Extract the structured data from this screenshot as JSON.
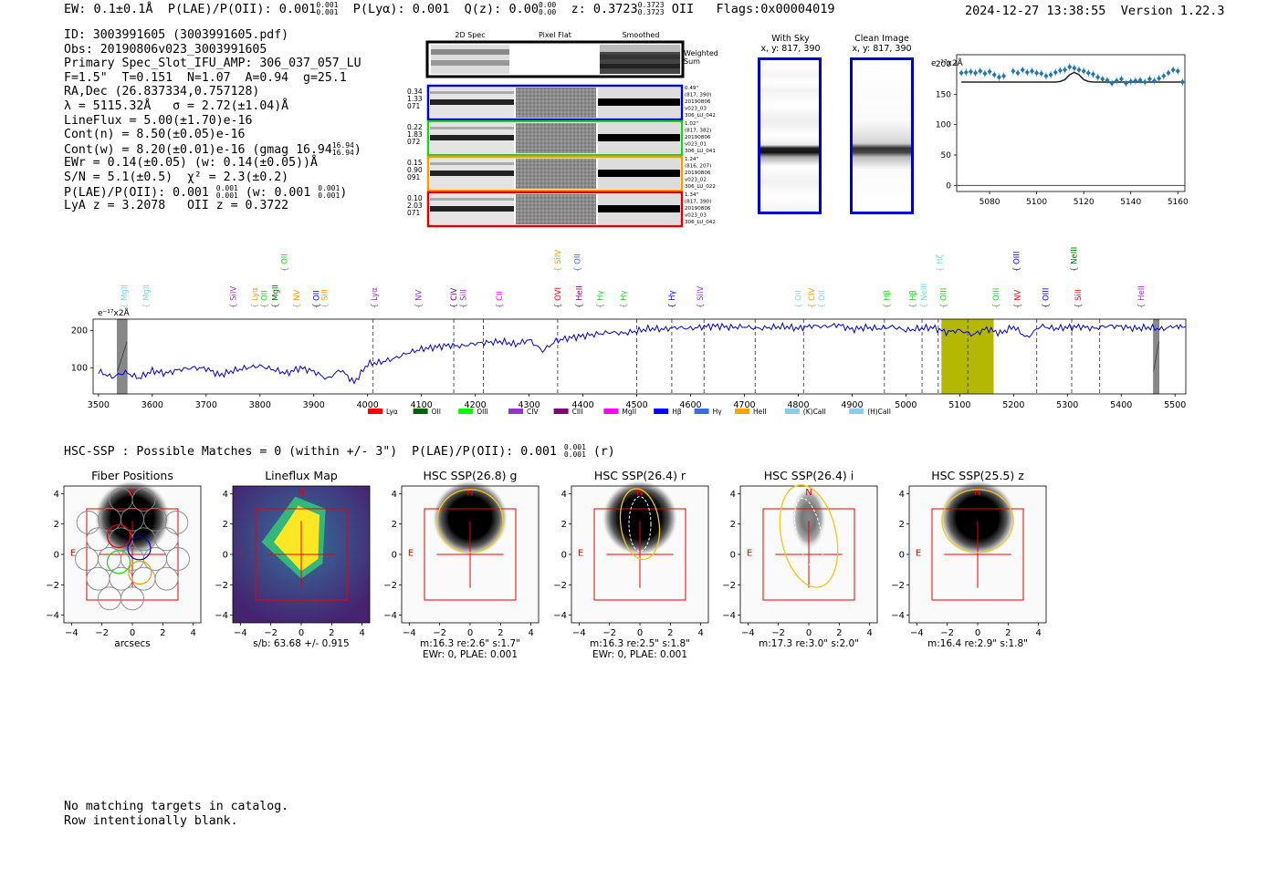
{
  "header": {
    "ew": "EW: 0.1±0.1Å",
    "plae": "P(LAE)/P(OII): 0.001",
    "plae_sup": "0.001",
    "plae_sub": "0.001",
    "plya": "P(Lyα): 0.001",
    "qz": "Q(z): 0.00",
    "qz_sup": "0.00",
    "qz_sub": "0.00",
    "z": "z: 0.3723",
    "z_sup": "0.3723",
    "z_sub": "0.3723",
    "z_line": "OII",
    "flags": "Flags:0x00004019",
    "datetime": "2024-12-27 13:38:55",
    "version": "Version 1.22.3"
  },
  "info": {
    "id": "ID: 3003991605 (3003991605.pdf)",
    "obs": "Obs: 20190806v023_3003991605",
    "primary": "Primary Spec_Slot_IFU_AMP: 306_037_057_LU",
    "params": "F=1.5\"  T=0.151  N=1.07  A=0.94  g=25.1",
    "radec": "RA,Dec (26.837334,0.757128)",
    "lambda": "λ = 5115.32Å   σ = 2.72(±1.04)Å",
    "lineflux": "LineFlux = 5.00(±1.70)e-16",
    "contn": "Cont(n) = 8.50(±0.05)e-16",
    "contw": "Cont(w) = 8.20(±0.01)e-16 (gmag 16.94",
    "contw_sup": "16.94",
    "contw_sub": "16.94",
    "contw_end": ")",
    "ewr": "EWr = 0.14(±0.05) (w: 0.14(±0.05))Å",
    "sn": "S/N = 5.1(±0.5)  χ² = 2.3(±0.2)",
    "plae2": "P(LAE)/P(OII): 0.001",
    "plae2_sup": "0.001",
    "plae2_sub": "0.001",
    "plae2_w": "(w: 0.001",
    "plae2_w_sup": "0.001",
    "plae2_w_sub": "0.001",
    "plae2_end": ")",
    "lya_z": "LyA z = 3.2078   OII z = 0.3722"
  },
  "cutouts": {
    "col_headers": [
      "2D Spec",
      "Pixel Flat",
      "Smoothed"
    ],
    "weighted_label": "Weighted",
    "weighted_label2": "Sum",
    "rows": [
      {
        "color": "#0000cc",
        "left": [
          "0.34",
          "1.33",
          "071"
        ],
        "right": [
          "0.49\"",
          "(817, 390)",
          "20190806",
          "v023_03",
          "306_LU_042"
        ]
      },
      {
        "color": "#22cc22",
        "left": [
          "0.22",
          "1.83",
          "072"
        ],
        "right": [
          "1.02\"",
          "(817, 382)",
          "20190806",
          "v023_01",
          "306_LU_041"
        ]
      },
      {
        "color": "#ff9900",
        "left": [
          "0.15",
          "0.90",
          "091"
        ],
        "right": [
          "1.24\"",
          "(816, 207)",
          "20190806",
          "v023_02",
          "306_LU_022"
        ]
      },
      {
        "color": "#dd0000",
        "left": [
          "0.10",
          "2.03",
          "071"
        ],
        "right": [
          "1.34\"",
          "(817, 390)",
          "20190806",
          "v023_03",
          "306_LU_042"
        ]
      }
    ]
  },
  "sky": {
    "with_sky": "With Sky",
    "with_sky_xy": "x, y: 817, 390",
    "clean": "Clean Image",
    "clean_xy": "x, y: 817, 390"
  },
  "small_plot": {
    "ylabel": "e⁻¹⁷x2Å",
    "yticks": [
      0,
      50,
      100,
      150,
      200
    ],
    "xticks": [
      5080,
      5100,
      5120,
      5140,
      5160
    ]
  },
  "full_spectrum": {
    "ylabel": "e⁻¹⁷x2Å",
    "xticks": [
      3500,
      3600,
      3700,
      3800,
      3900,
      4000,
      4100,
      4200,
      4300,
      4400,
      4500,
      4600,
      4700,
      4800,
      4900,
      5000,
      5100,
      5200,
      5300,
      5400,
      5500
    ],
    "yticks": [
      100,
      200
    ],
    "legend": [
      {
        "label": "Lyα",
        "color": "#ff0000"
      },
      {
        "label": "OII",
        "color": "#006400"
      },
      {
        "label": "OIII",
        "color": "#00ff00"
      },
      {
        "label": "CIV",
        "color": "#9932cc"
      },
      {
        "label": "CIII",
        "color": "#800080"
      },
      {
        "label": "MgII",
        "color": "#ff00ff"
      },
      {
        "label": "Hβ",
        "color": "#0000ff"
      },
      {
        "label": "Hγ",
        "color": "#4169e1"
      },
      {
        "label": "HeII",
        "color": "#ffa500"
      },
      {
        "label": "(K)CaII",
        "color": "#87ceeb"
      },
      {
        "label": "(H)CaII",
        "color": "#87ceeb"
      }
    ],
    "lines": [
      {
        "name": "MgII",
        "color": "#87ceeb",
        "wave": 3548,
        "row": 1
      },
      {
        "name": "MgII",
        "color": "#87ceeb",
        "wave": 3588,
        "row": 1
      },
      {
        "name": "SiIV",
        "color": "#9932cc",
        "wave": 3750,
        "row": 1
      },
      {
        "name": "Lyα",
        "color": "#ff9900",
        "wave": 3790,
        "row": 1
      },
      {
        "name": "OII",
        "color": "#22cc22",
        "wave": 3808,
        "row": 1
      },
      {
        "name": "MgII",
        "color": "#006400",
        "wave": 3828,
        "row": 1
      },
      {
        "name": "OII",
        "color": "#22cc22",
        "wave": 3845,
        "row": 0
      },
      {
        "name": "NV",
        "color": "#ff9900",
        "wave": 3868,
        "row": 1
      },
      {
        "name": "OII",
        "color": "#0000cc",
        "wave": 3905,
        "row": 1
      },
      {
        "name": "SiII",
        "color": "#ff9900",
        "wave": 3920,
        "row": 1
      },
      {
        "name": "Lyα",
        "color": "#9932cc",
        "wave": 4012,
        "row": 1
      },
      {
        "name": "NV",
        "color": "#9932cc",
        "wave": 4095,
        "row": 1
      },
      {
        "name": "CIV",
        "color": "#800080",
        "wave": 4160,
        "row": 1
      },
      {
        "name": "SiII",
        "color": "#9932cc",
        "wave": 4178,
        "row": 1
      },
      {
        "name": "CII",
        "color": "#ff00ff",
        "wave": 4245,
        "row": 1
      },
      {
        "name": "SiIV",
        "color": "#ff9900",
        "wave": 4353,
        "row": 0
      },
      {
        "name": "OVI",
        "color": "#ff0000",
        "wave": 4353,
        "row": 1
      },
      {
        "name": "OII",
        "color": "#4169e1",
        "wave": 4390,
        "row": 0
      },
      {
        "name": "HeII",
        "color": "#800080",
        "wave": 4393,
        "row": 1
      },
      {
        "name": "Hγ",
        "color": "#22cc22",
        "wave": 4432,
        "row": 1
      },
      {
        "name": "Hγ",
        "color": "#22cc22",
        "wave": 4475,
        "row": 1
      },
      {
        "name": "Hγ",
        "color": "#0000cc",
        "wave": 4565,
        "row": 1
      },
      {
        "name": "SiIV",
        "color": "#9932cc",
        "wave": 4618,
        "row": 1
      },
      {
        "name": "OII",
        "color": "#87ceeb",
        "wave": 4800,
        "row": 1
      },
      {
        "name": "CIV",
        "color": "#ff9900",
        "wave": 4825,
        "row": 1
      },
      {
        "name": "OII",
        "color": "#87ceeb",
        "wave": 4843,
        "row": 1
      },
      {
        "name": "Hβ",
        "color": "#22cc22",
        "wave": 4965,
        "row": 1
      },
      {
        "name": "Hβ",
        "color": "#22cc22",
        "wave": 5013,
        "row": 1
      },
      {
        "name": "NeIII",
        "color": "#87ceeb",
        "wave": 5033,
        "row": 1
      },
      {
        "name": "Hζ",
        "color": "#87ceeb",
        "wave": 5063,
        "row": 0
      },
      {
        "name": "OIII",
        "color": "#22cc22",
        "wave": 5070,
        "row": 1
      },
      {
        "name": "OIII",
        "color": "#22cc22",
        "wave": 5167,
        "row": 1
      },
      {
        "name": "OIII",
        "color": "#0000cc",
        "wave": 5205,
        "row": 0
      },
      {
        "name": "NV",
        "color": "#ff0000",
        "wave": 5207,
        "row": 1
      },
      {
        "name": "OIII",
        "color": "#0000cc",
        "wave": 5260,
        "row": 1
      },
      {
        "name": "NeIII",
        "color": "#006400",
        "wave": 5312,
        "row": 0
      },
      {
        "name": "SiII",
        "color": "#ff0000",
        "wave": 5320,
        "row": 1
      },
      {
        "name": "HeII",
        "color": "#9932cc",
        "wave": 5437,
        "row": 1
      }
    ]
  },
  "hsc": {
    "title": "HSC-SSP : Possible Matches = 0 (within +/- 3\")  P(LAE)/P(OII): 0.001",
    "title_sup": "0.001",
    "title_sub": "0.001",
    "title_end": "(r)",
    "panels": [
      {
        "title": "Fiber Positions",
        "caption1": "arcsecs",
        "caption2": ""
      },
      {
        "title": "Lineflux Map",
        "caption1": "s/b: 63.68 +/- 0.915",
        "caption2": ""
      },
      {
        "title": "HSC SSP(26.8) g",
        "caption1": "m:16.3  re:2.6\"  s:1.7\"",
        "caption2": "EWr: 0, PLAE: 0.001"
      },
      {
        "title": "HSC SSP(26.4) r",
        "caption1": "m:16.3  re:2.5\"  s:1.8\"",
        "caption2": "EWr: 0, PLAE: 0.001"
      },
      {
        "title": "HSC SSP(26.4) i",
        "caption1": "m:17.3  re:3.0\"  s:2.0\"",
        "caption2": ""
      },
      {
        "title": "HSC SSP(25.5) z",
        "caption1": "m:16.4  re:2.9\"  s:1.8\"",
        "caption2": ""
      }
    ],
    "ticks": [
      -4,
      -2,
      0,
      2,
      4
    ],
    "north": "N",
    "east": "E"
  },
  "footer": {
    "line1": "No matching targets in catalog.",
    "line2": "Row intentionally blank."
  },
  "chart_data": [
    {
      "type": "line",
      "title": "",
      "xlabel": "",
      "ylabel": "e⁻¹⁷x2Å",
      "xlim": [
        5066,
        5163
      ],
      "ylim": [
        -10,
        215
      ],
      "x": [
        5068,
        5070,
        5072,
        5074,
        5076,
        5078,
        5080,
        5082,
        5084,
        5086,
        5090,
        5092,
        5094,
        5096,
        5098,
        5100,
        5102,
        5104,
        5106,
        5108,
        5110,
        5112,
        5114,
        5116,
        5118,
        5120,
        5122,
        5124,
        5126,
        5128,
        5130,
        5132,
        5134,
        5136,
        5138,
        5140,
        5142,
        5144,
        5146,
        5148,
        5150,
        5152,
        5154,
        5156,
        5158,
        5160,
        5162
      ],
      "series": [
        {
          "name": "data",
          "values": [
            185,
            186,
            187,
            185,
            188,
            184,
            187,
            182,
            178,
            180,
            188,
            185,
            190,
            186,
            188,
            185,
            184,
            180,
            182,
            186,
            189,
            190,
            195,
            193,
            190,
            188,
            185,
            183,
            178,
            175,
            173,
            168,
            172,
            175,
            168,
            171,
            172,
            173,
            170,
            175,
            172,
            176,
            180,
            185,
            190,
            188,
            170
          ]
        },
        {
          "name": "fit",
          "values": [
            170,
            170,
            170,
            170,
            170,
            170,
            170,
            170,
            170,
            170,
            170,
            170,
            170,
            170,
            170,
            170,
            170,
            170,
            170,
            170,
            171,
            174,
            182,
            186,
            182,
            174,
            171,
            170,
            170,
            170,
            170,
            170,
            170,
            170,
            170,
            170,
            170,
            170,
            170,
            170,
            170,
            170,
            170,
            170,
            170,
            170,
            170
          ]
        }
      ]
    },
    {
      "type": "line",
      "title": "",
      "xlabel": "",
      "ylabel": "e⁻¹⁷x2Å",
      "xlim": [
        3490,
        5520
      ],
      "ylim": [
        30,
        230
      ],
      "x": [
        3500,
        3525,
        3550,
        3575,
        3600,
        3625,
        3650,
        3675,
        3700,
        3725,
        3750,
        3775,
        3800,
        3825,
        3850,
        3875,
        3900,
        3925,
        3950,
        3975,
        4000,
        4025,
        4050,
        4075,
        4100,
        4125,
        4150,
        4175,
        4200,
        4225,
        4250,
        4275,
        4300,
        4325,
        4350,
        4375,
        4400,
        4425,
        4450,
        4475,
        4500,
        4525,
        4550,
        4575,
        4600,
        4625,
        4650,
        4675,
        4700,
        4725,
        4750,
        4775,
        4800,
        4825,
        4850,
        4875,
        4900,
        4925,
        4950,
        4975,
        5000,
        5025,
        5050,
        5075,
        5100,
        5125,
        5150,
        5175,
        5200,
        5225,
        5250,
        5275,
        5300,
        5325,
        5350,
        5375,
        5400,
        5425,
        5450,
        5475,
        5500,
        5520
      ],
      "series": [
        {
          "name": "spectrum",
          "values": [
            90,
            75,
            88,
            72,
            92,
            85,
            95,
            100,
            98,
            80,
            92,
            100,
            105,
            95,
            85,
            100,
            90,
            70,
            95,
            60,
            110,
            115,
            125,
            140,
            150,
            155,
            160,
            158,
            165,
            168,
            170,
            162,
            175,
            145,
            172,
            180,
            185,
            190,
            195,
            192,
            198,
            205,
            203,
            208,
            205,
            210,
            212,
            208,
            210,
            205,
            208,
            210,
            205,
            212,
            210,
            215,
            202,
            208,
            205,
            210,
            200,
            205,
            208,
            195,
            200,
            188,
            205,
            192,
            210,
            180,
            212,
            205,
            208,
            210,
            205,
            212,
            210,
            205,
            208,
            203,
            212,
            210
          ]
        }
      ],
      "highlight_range": [
        5066,
        5163
      ],
      "masked_ranges": [
        [
          3535,
          3553
        ],
        [
          5460,
          5470
        ]
      ],
      "dashed_lines": [
        4010,
        4160,
        4215,
        4353,
        4500,
        4565,
        4625,
        4720,
        4810,
        4960,
        5030,
        5060,
        5115,
        5243,
        5308,
        5360
      ]
    }
  ]
}
